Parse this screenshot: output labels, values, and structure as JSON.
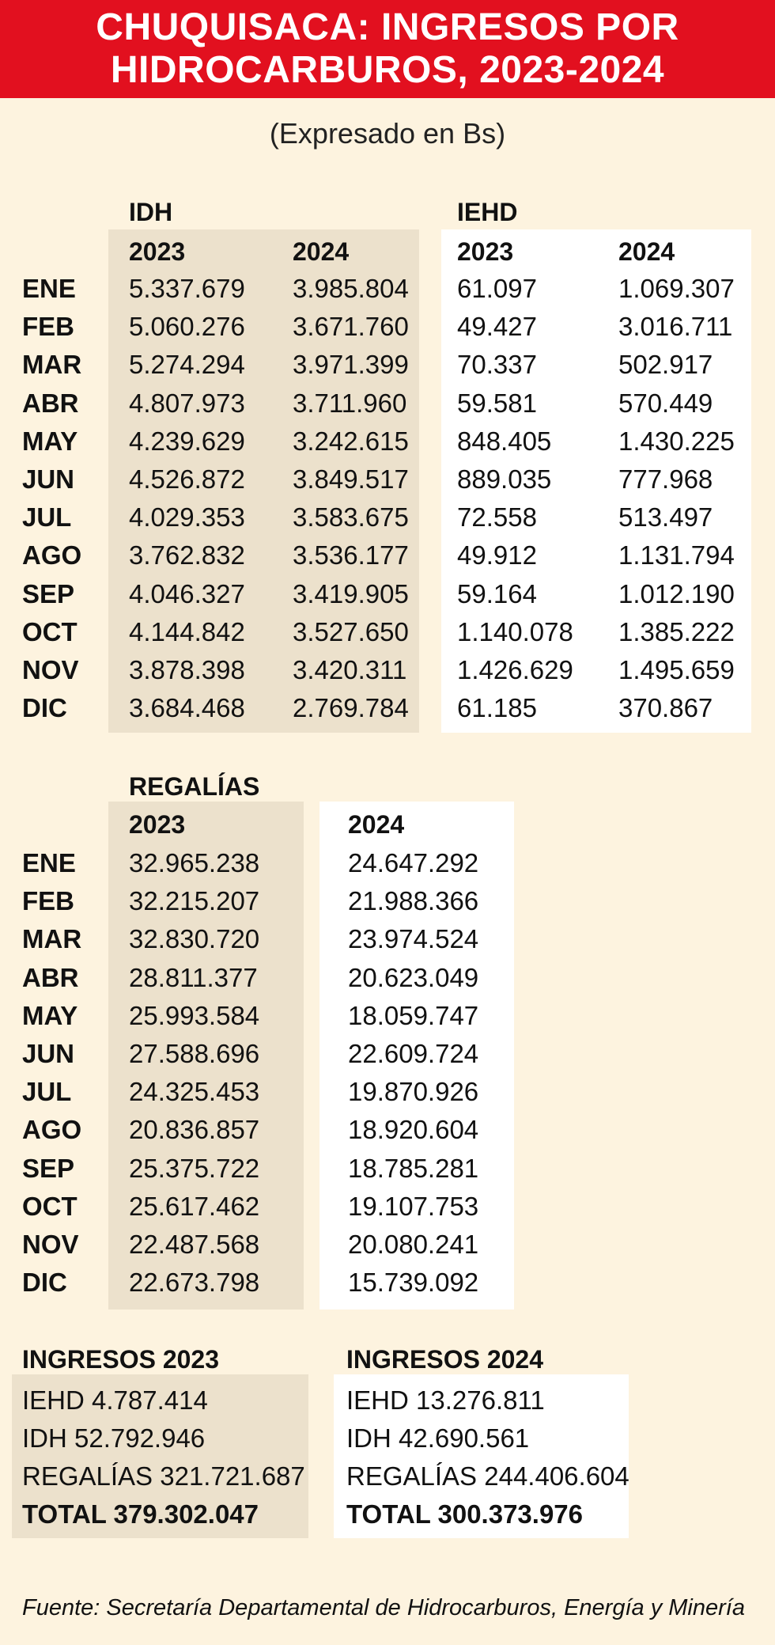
{
  "title_lines": [
    "CHUQUISACA: INGRESOS POR",
    "HIDROCARBUROS, 2023-2024"
  ],
  "subtitle": "(Expresado en Bs)",
  "chart_data": {
    "type": "table",
    "months": [
      "ENE",
      "FEB",
      "MAR",
      "ABR",
      "MAY",
      "JUN",
      "JUL",
      "AGO",
      "SEP",
      "OCT",
      "NOV",
      "DIC"
    ],
    "idh": {
      "label": "IDH",
      "years": [
        "2023",
        "2024"
      ],
      "values_2023": [
        "5.337.679",
        "5.060.276",
        "5.274.294",
        "4.807.973",
        "4.239.629",
        "4.526.872",
        "4.029.353",
        "3.762.832",
        "4.046.327",
        "4.144.842",
        "3.878.398",
        "3.684.468"
      ],
      "values_2024": [
        "3.985.804",
        "3.671.760",
        "3.971.399",
        "3.711.960",
        "3.242.615",
        "3.849.517",
        "3.583.675",
        "3.536.177",
        "3.419.905",
        "3.527.650",
        "3.420.311",
        "2.769.784"
      ]
    },
    "iehd": {
      "label": "IEHD",
      "years": [
        "2023",
        "2024"
      ],
      "values_2023": [
        "61.097",
        "49.427",
        "70.337",
        "59.581",
        "848.405",
        "889.035",
        "72.558",
        "49.912",
        "59.164",
        "1.140.078",
        "1.426.629",
        "61.185"
      ],
      "values_2024": [
        "1.069.307",
        "3.016.711",
        "502.917",
        "570.449",
        "1.430.225",
        "777.968",
        "513.497",
        "1.131.794",
        "1.012.190",
        "1.385.222",
        "1.495.659",
        "370.867"
      ]
    },
    "regalias": {
      "label": "REGALÍAS",
      "years": [
        "2023",
        "2024"
      ],
      "values_2023": [
        "32.965.238",
        "32.215.207",
        "32.830.720",
        "28.811.377",
        "25.993.584",
        "27.588.696",
        "24.325.453",
        "20.836.857",
        "25.375.722",
        "25.617.462",
        "22.487.568",
        "22.673.798"
      ],
      "values_2024": [
        "24.647.292",
        "21.988.366",
        "23.974.524",
        "20.623.049",
        "18.059.747",
        "22.609.724",
        "19.870.926",
        "18.920.604",
        "18.785.281",
        "19.107.753",
        "20.080.241",
        "15.739.092"
      ]
    },
    "totals": [
      {
        "heading": "INGRESOS 2023",
        "lines": [
          "IEHD 4.787.414",
          "IDH 52.792.946",
          "REGALÍAS 321.721.687"
        ],
        "total": "TOTAL 379.302.047"
      },
      {
        "heading": "INGRESOS 2024",
        "lines": [
          "IEHD 13.276.811",
          "IDH 42.690.561",
          "REGALÍAS 244.406.604"
        ],
        "total": "TOTAL 300.373.976"
      }
    ]
  },
  "source": "Fuente: Secretaría Departamental de Hidrocarburos, Energía y Minería",
  "colors": {
    "header_bg": "#e2101f",
    "page_bg": "#fdf3df",
    "shade_bg": "#ece1cc",
    "box_bg": "#ffffff"
  }
}
